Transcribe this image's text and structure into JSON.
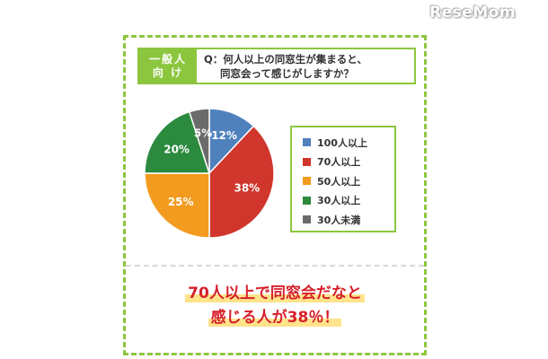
{
  "site": {
    "logo_text": "ReseMom"
  },
  "question": {
    "tag_line1": "一般人",
    "tag_line2": "向 け",
    "line1": "Q：何人以上の同窓生が集まると、",
    "line2": "同窓会って感じがしますか？"
  },
  "conclusion": {
    "line1": "70人以上で同窓会だなと",
    "line2": "感じる人が38％！"
  },
  "chart_data": {
    "type": "pie",
    "slices": [
      {
        "label": "100人以上",
        "value": 12,
        "display": "12%",
        "color": "#4f81bd"
      },
      {
        "label": "70人以上",
        "value": 38,
        "display": "38%",
        "color": "#d0362c"
      },
      {
        "label": "50人以上",
        "value": 25,
        "display": "25%",
        "color": "#f39b1f"
      },
      {
        "label": "30人以上",
        "value": 20,
        "display": "20%",
        "color": "#2b8a3e"
      },
      {
        "label": "30人未満",
        "value": 5,
        "display": "5%",
        "color": "#6b6b6b"
      }
    ],
    "start": "12 o'clock",
    "direction": "clockwise",
    "legend_position": "right"
  }
}
